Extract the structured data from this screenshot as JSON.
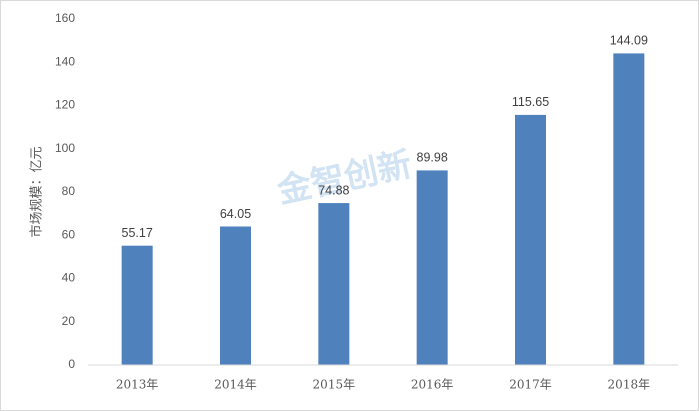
{
  "chart_data": {
    "type": "bar",
    "y_label": "市场规模：亿元",
    "categories": [
      "2013年",
      "2014年",
      "2015年",
      "2016年",
      "2017年",
      "2018年"
    ],
    "values": [
      55.17,
      64.05,
      74.88,
      89.98,
      115.65,
      144.09
    ],
    "color": "#4f81bd",
    "ylim": [
      0,
      160
    ],
    "yticks": [
      0,
      20,
      40,
      60,
      80,
      100,
      120,
      140,
      160
    ],
    "grid": false,
    "watermark": "金智创新"
  }
}
